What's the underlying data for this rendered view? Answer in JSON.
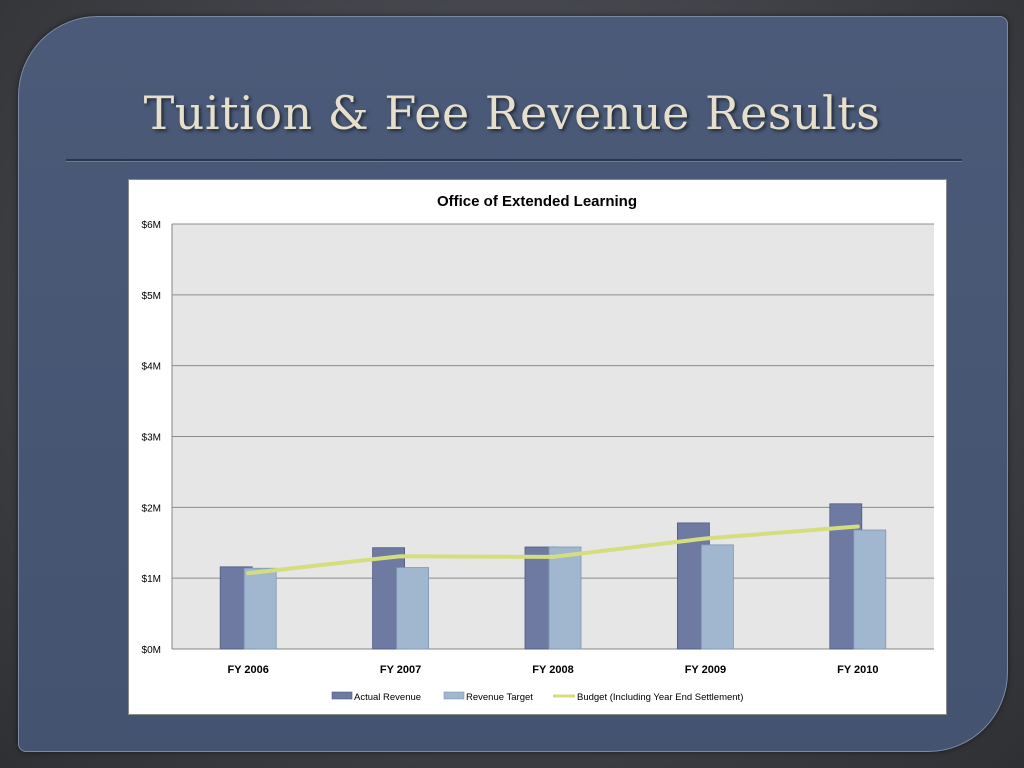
{
  "slide": {
    "title": "Tuition & Fee Revenue Results"
  },
  "colors": {
    "actual": "#6e7aa2",
    "target": "#a1b6cf",
    "budget": "#d4de7e",
    "plot_bg": "#e6e6e6",
    "panel": "#4a5a78",
    "title_text": "#e6dfcb"
  },
  "chart_data": {
    "type": "bar",
    "title": "Office of Extended Learning",
    "xlabel": "",
    "ylabel": "",
    "categories": [
      "FY 2006",
      "FY 2007",
      "FY 2008",
      "FY 2009",
      "FY 2010"
    ],
    "ylim": [
      0,
      6
    ],
    "yticks": [
      0,
      1,
      2,
      3,
      4,
      5,
      6
    ],
    "ytick_labels": [
      "$0M",
      "$1M",
      "$2M",
      "$3M",
      "$4M",
      "$5M",
      "$6M"
    ],
    "grid": true,
    "legend_position": "bottom",
    "series": [
      {
        "name": "Actual Revenue",
        "kind": "bar",
        "values": [
          1.16,
          1.43,
          1.44,
          1.78,
          2.05
        ]
      },
      {
        "name": "Revenue Target",
        "kind": "bar",
        "values": [
          1.14,
          1.15,
          1.44,
          1.47,
          1.68
        ]
      },
      {
        "name": "Budget (Including Year End Settlement)",
        "kind": "line",
        "values": [
          1.07,
          1.31,
          1.3,
          1.56,
          1.73
        ]
      }
    ]
  }
}
